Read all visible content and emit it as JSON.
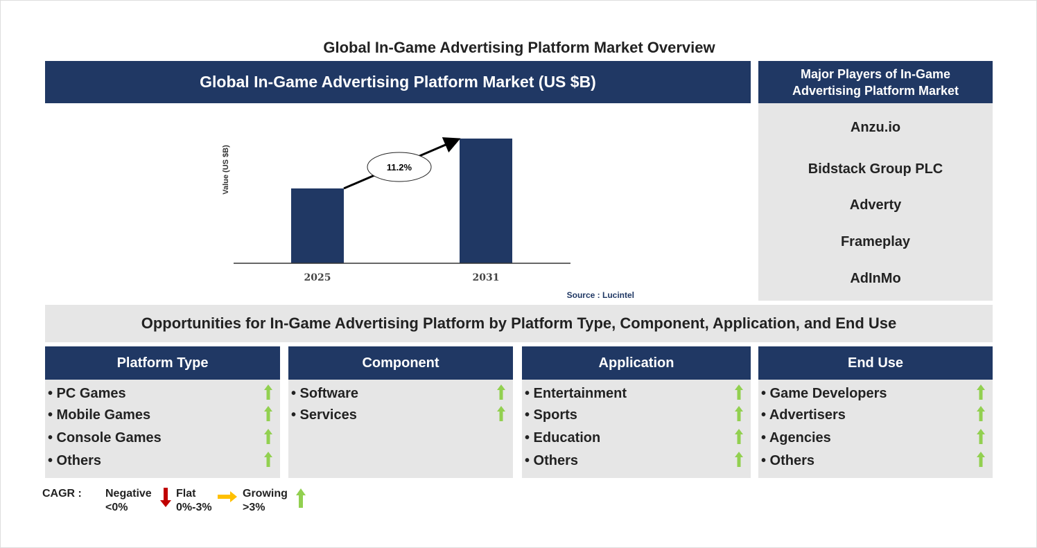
{
  "page_title": "Global In-Game Advertising Platform Market Overview",
  "market_header": "Global In-Game Advertising Platform Market (US $B)",
  "players_header": "Major Players of In-Game Advertising Platform Market",
  "players": [
    "Anzu.io",
    "Bidstack Group PLC",
    "Adverty",
    "Frameplay",
    "AdInMo"
  ],
  "opportunities_header": "Opportunities for In-Game Advertising Platform by Platform Type, Component, Application, and End Use",
  "segments": [
    {
      "title": "Platform Type",
      "items": [
        "• PC Games",
        "• Mobile Games",
        "• Console Games",
        "• Others"
      ],
      "trend": "growing"
    },
    {
      "title": "Component",
      "items": [
        "• Software",
        "• Services"
      ],
      "trend": "growing"
    },
    {
      "title": "Application",
      "items": [
        "• Entertainment",
        "• Sports",
        "• Education",
        "• Others"
      ],
      "trend": "growing"
    },
    {
      "title": "End Use",
      "items": [
        "• Game Developers",
        "• Advertisers",
        "• Agencies",
        "• Others"
      ],
      "trend": "growing"
    }
  ],
  "legend": {
    "label": "CAGR :",
    "negative": "Negative",
    "negative_range": "<0%",
    "flat": "Flat",
    "flat_range": "0%-3%",
    "growing": "Growing",
    "growing_range": ">3%"
  },
  "colors": {
    "navy": "#203864",
    "grey": "#e6e6e6",
    "up_arrow": "#92d050",
    "down_arrow": "#c00000",
    "flat_arrow": "#ffc000"
  },
  "chart_data": {
    "type": "bar",
    "categories": [
      "2025",
      "2031"
    ],
    "values": [
      0.6,
      1.0
    ],
    "ylabel": "Value (US $B)",
    "annotation": "11.2%",
    "source": "Source : Lucintel",
    "grid": false
  }
}
